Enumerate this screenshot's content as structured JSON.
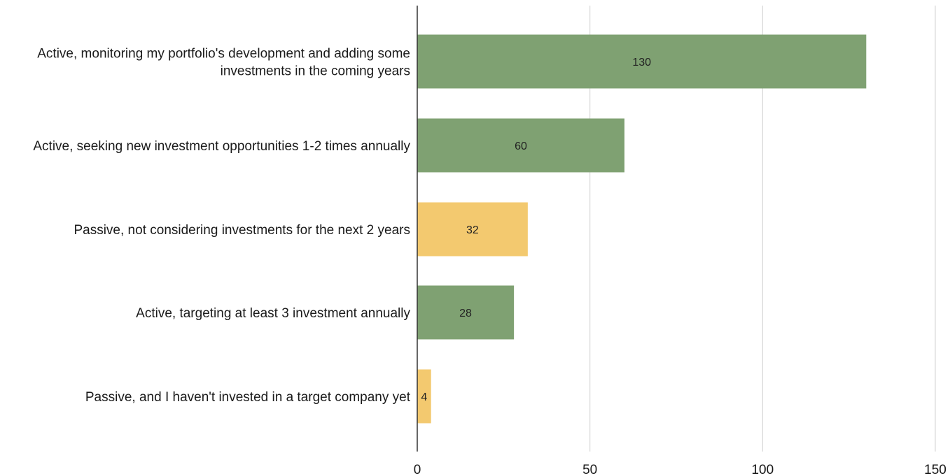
{
  "chart_data": {
    "type": "bar",
    "orientation": "horizontal",
    "categories": [
      "Active, monitoring my portfolio's development and adding some investments in the coming years",
      "Active, seeking new investment opportunities 1-2 times annually",
      "Passive, not considering investments for the next 2 years",
      "Active, targeting at least 3 investment annually",
      "Passive, and I haven't invested in a target company yet"
    ],
    "category_lines": [
      [
        "Active, monitoring my portfolio's development and adding some",
        "investments in the coming years"
      ],
      [
        "Active, seeking new investment opportunities 1-2 times annually"
      ],
      [
        "Passive, not considering investments for the next 2 years"
      ],
      [
        "Active, targeting at least 3 investment annually"
      ],
      [
        "Passive, and I haven't invested in a target company yet"
      ]
    ],
    "values": [
      130,
      60,
      32,
      28,
      4
    ],
    "data_labels": [
      "130",
      "60",
      "32",
      "28",
      "4"
    ],
    "bar_colors": [
      "#7fa172",
      "#7fa172",
      "#f3c96f",
      "#7fa172",
      "#f3c96f"
    ],
    "xlim": [
      0,
      150
    ],
    "x_ticks": [
      0,
      50,
      100,
      150
    ],
    "x_tick_labels": [
      "0",
      "50",
      "100",
      "150"
    ],
    "title": "",
    "xlabel": "",
    "ylabel": "",
    "grid": "vertical",
    "legend": "none"
  },
  "colors": {
    "active": "#7fa172",
    "passive": "#f3c96f",
    "grid": "#d9d9d9",
    "axis": "#333333"
  }
}
